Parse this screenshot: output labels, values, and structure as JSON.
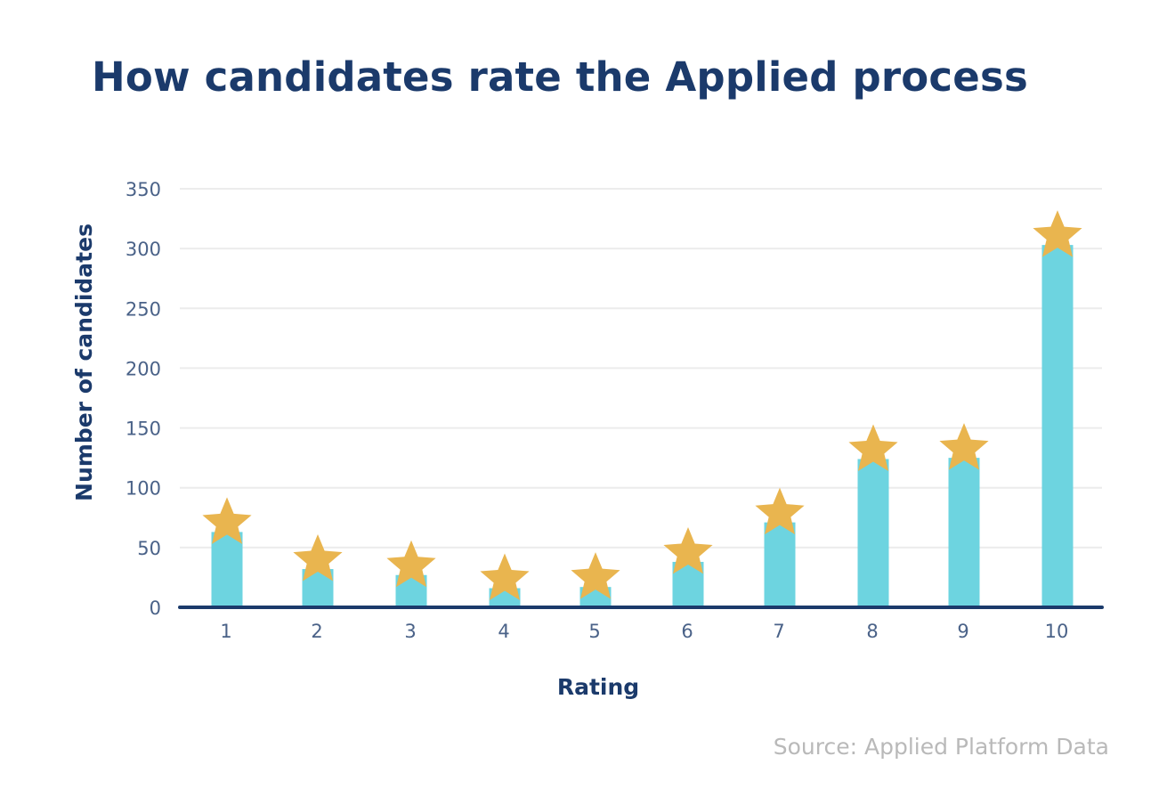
{
  "chart_data": {
    "type": "bar",
    "title": "How candidates rate the Applied process",
    "xlabel": "Rating",
    "ylabel": "Number of candidates",
    "categories": [
      "1",
      "2",
      "3",
      "4",
      "5",
      "6",
      "7",
      "8",
      "9",
      "10"
    ],
    "values": [
      63,
      32,
      27,
      16,
      17,
      38,
      71,
      124,
      125,
      303
    ],
    "ylim": [
      0,
      350
    ],
    "yticks": [
      0,
      50,
      100,
      150,
      200,
      250,
      300,
      350
    ],
    "grid": true,
    "legend": "none",
    "marker": "star-above-each-bar",
    "source": "Source: Applied Platform Data"
  },
  "colors": {
    "bar": "#6dd4e0",
    "star": "#e9b54f",
    "title": "#1b3a6b",
    "axis_line": "#1b3a6b",
    "grid": "#ececec",
    "tick_label": "#4a6288",
    "source": "#b9b9b9"
  }
}
